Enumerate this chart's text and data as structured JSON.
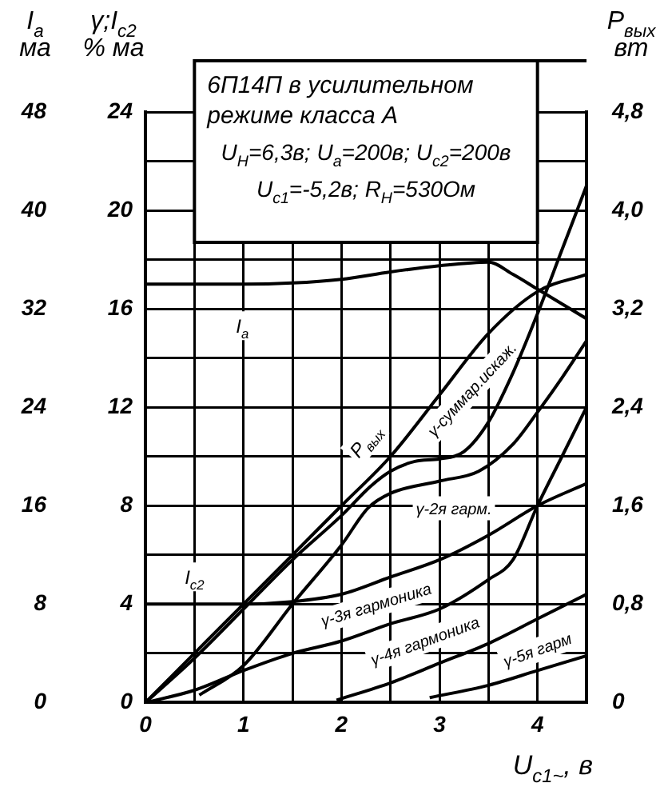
{
  "chart_data": {
    "type": "line",
    "title": "6П14П в усилительном режиме класса А",
    "annotations": [
      "U$_{Н}$=6,3в; U$_{a}$=200в; U$_{c2}$=200в",
      "U$_{c1}$=-5,2в; R$_{Н}$=530Ом"
    ],
    "xlabel": "U$_{c1~}$, в",
    "ylabel": "γ;I$_{c2}$\n% ма",
    "y2label": "P$_{вых}$\nвт",
    "y3label": "I$_{a}$\nма",
    "xlim": [
      0,
      4.5
    ],
    "xticks": [
      0,
      {
        "value": 0.5,
        "label": null
      },
      1,
      {
        "value": 1.5,
        "label": null
      },
      2,
      {
        "value": 2.5,
        "label": null
      },
      3,
      {
        "value": 3.5,
        "label": null
      },
      4,
      {
        "value": 4.5,
        "label": null
      }
    ],
    "ylim": [
      0,
      24
    ],
    "yticks": [
      0,
      {
        "value": 2,
        "label": null
      },
      4,
      {
        "value": 6,
        "label": null
      },
      8,
      {
        "value": 10,
        "label": null
      },
      12,
      {
        "value": 14,
        "label": null
      },
      16,
      {
        "value": 18,
        "label": null
      },
      20,
      {
        "value": 22,
        "label": null
      },
      24
    ],
    "y2lim": [
      0,
      4.8
    ],
    "y2ticks": [
      0,
      {
        "value": 0.8,
        "label": "0,8"
      },
      {
        "value": 1.6,
        "label": "1,6"
      },
      {
        "value": 2.4,
        "label": "2,4"
      },
      {
        "value": 3.2,
        "label": "3,2"
      },
      {
        "value": 4.0,
        "label": "4,0"
      },
      {
        "value": 4.8,
        "label": "4,8"
      }
    ],
    "y3lim": [
      0,
      48
    ],
    "y3ticks": [
      0,
      8,
      16,
      24,
      32,
      40,
      48
    ],
    "grid": true,
    "legend": false,
    "series": [
      {
        "name": "I$_{a}$",
        "color": "#000000",
        "axis": "y3",
        "x": [
          0,
          0.5,
          1,
          1.5,
          2,
          2.5,
          3,
          3.5,
          3.75,
          4,
          4.25,
          4.5
        ],
        "values": [
          34,
          34,
          34,
          34.1,
          34.4,
          35,
          35.5,
          35.8,
          34.8,
          33.6,
          32.4,
          31.2
        ]
      },
      {
        "name": "P$_{вых}$",
        "color": "#000000",
        "axis": "y2",
        "x": [
          0,
          0.5,
          1,
          1.5,
          2,
          2.5,
          3,
          3.5,
          4,
          4.5
        ],
        "values": [
          0,
          0.4,
          0.8,
          1.2,
          1.6,
          2.0,
          2.5,
          3.0,
          3.34,
          3.48
        ]
      },
      {
        "name": "γ-суммар.искаж.",
        "color": "#000000",
        "x": [
          0,
          0.5,
          1,
          1.5,
          2,
          2.3,
          2.5,
          2.75,
          3,
          3.25,
          3.5,
          3.75,
          4,
          4.25,
          4.5
        ],
        "values": [
          0,
          1.8,
          3.8,
          5.8,
          7.6,
          8.8,
          9.4,
          9.8,
          9.9,
          10.2,
          11.4,
          13.4,
          15.8,
          18.4,
          21
        ]
      },
      {
        "name": "γ-2я гарм.",
        "color": "#000000",
        "x": [
          0.55,
          1,
          1.5,
          2,
          2.27,
          2.5,
          3,
          3.4,
          3.75,
          4,
          4.25,
          4.5
        ],
        "values": [
          0.3,
          1.5,
          4.0,
          6.4,
          7.9,
          8.5,
          9.0,
          9.4,
          10.5,
          11.8,
          13.2,
          14.7
        ]
      },
      {
        "name": "I$_{c2}$",
        "color": "#000000",
        "x": [
          0,
          0.5,
          1,
          1.5,
          2,
          2.5,
          3,
          3.5,
          4,
          4.5
        ],
        "values": [
          4,
          4,
          4,
          4.1,
          4.4,
          5.1,
          5.8,
          6.8,
          8.0,
          8.9
        ]
      },
      {
        "name": "γ-3я гармоника",
        "color": "#000000",
        "x": [
          0,
          0.5,
          1,
          1.5,
          2,
          2.5,
          3,
          3.5,
          3.75,
          4,
          4.25,
          4.5
        ],
        "values": [
          0,
          0.5,
          1.3,
          2.0,
          2.5,
          3.2,
          3.8,
          5.0,
          5.8,
          8.0,
          10,
          12
        ]
      },
      {
        "name": "γ-4я гармоника",
        "color": "#000000",
        "x": [
          1.95,
          2.5,
          3,
          3.5,
          4,
          4.5
        ],
        "values": [
          0.1,
          0.8,
          1.6,
          2.4,
          3.4,
          4.4
        ]
      },
      {
        "name": "γ-5я гарм",
        "color": "#000000",
        "x": [
          2.9,
          3.5,
          4,
          4.5
        ],
        "values": [
          0.2,
          0.7,
          1.3,
          1.9
        ]
      }
    ]
  }
}
